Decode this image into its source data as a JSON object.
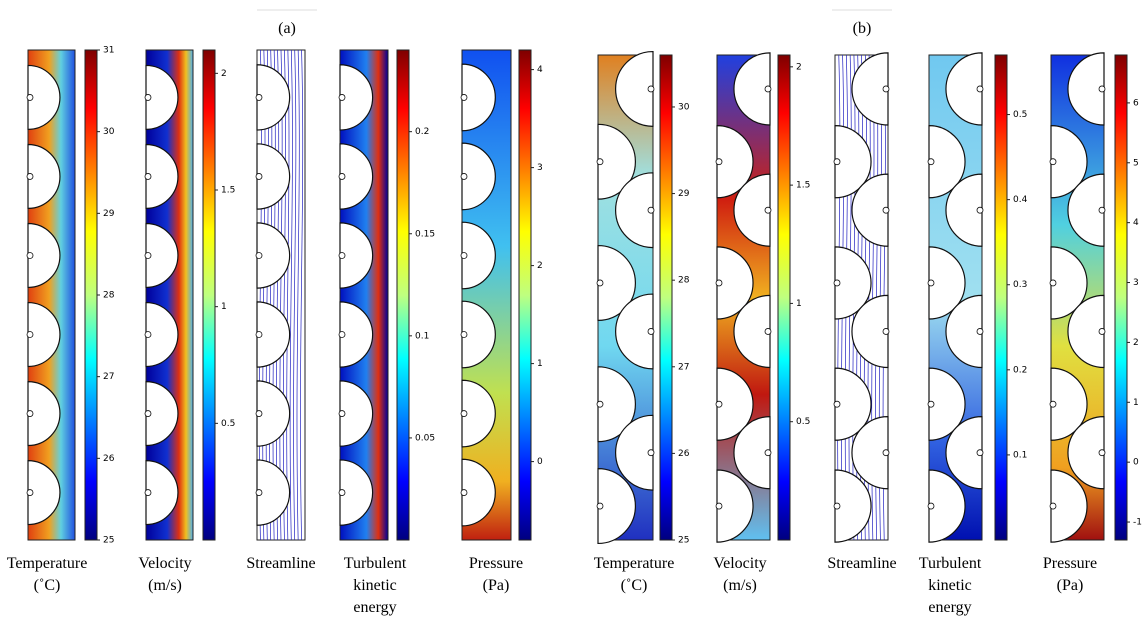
{
  "panels": [
    {
      "label": "(a)",
      "plots": [
        {
          "caption": [
            "Temperature",
            "(˚C)"
          ],
          "colorbar": {
            "range": [
              25,
              31
            ],
            "ticks": [
              25,
              26,
              27,
              28,
              29,
              30,
              31
            ]
          }
        },
        {
          "caption": [
            "Velocity",
            "(m/s)"
          ],
          "colorbar": {
            "range": [
              0,
              2.1
            ],
            "ticks": [
              0.5,
              1,
              1.5,
              2
            ]
          }
        },
        {
          "caption": [
            "Streamline"
          ]
        },
        {
          "caption": [
            "Turbulent",
            "kinetic",
            "energy"
          ],
          "colorbar": {
            "range": [
              0,
              0.24
            ],
            "ticks": [
              0.05,
              0.1,
              0.15,
              0.2
            ]
          }
        },
        {
          "caption": [
            "Pressure",
            "(Pa)"
          ],
          "colorbar": {
            "range": [
              -0.8,
              4.2
            ],
            "ticks": [
              0,
              1,
              2,
              3,
              4
            ]
          }
        }
      ]
    },
    {
      "label": "(b)",
      "plots": [
        {
          "caption": [
            "Temperature",
            "(˚C)"
          ],
          "colorbar": {
            "range": [
              25,
              30.6
            ],
            "ticks": [
              25,
              26,
              27,
              28,
              29,
              30
            ]
          }
        },
        {
          "caption": [
            "Velocity",
            "(m/s)"
          ],
          "colorbar": {
            "range": [
              0,
              2.05
            ],
            "ticks": [
              0.5,
              1,
              1.5,
              2
            ]
          }
        },
        {
          "caption": [
            "Streamline"
          ]
        },
        {
          "caption": [
            "Turbulent",
            "kinetic",
            "energy"
          ],
          "colorbar": {
            "range": [
              0,
              0.57
            ],
            "ticks": [
              0.1,
              0.2,
              0.3,
              0.4,
              0.5
            ]
          }
        },
        {
          "caption": [
            "Pressure",
            "(Pa)"
          ],
          "colorbar": {
            "range": [
              -1.3,
              6.8
            ],
            "ticks": [
              -1,
              0,
              1,
              2,
              3,
              4,
              5,
              6
            ]
          }
        }
      ]
    }
  ]
}
